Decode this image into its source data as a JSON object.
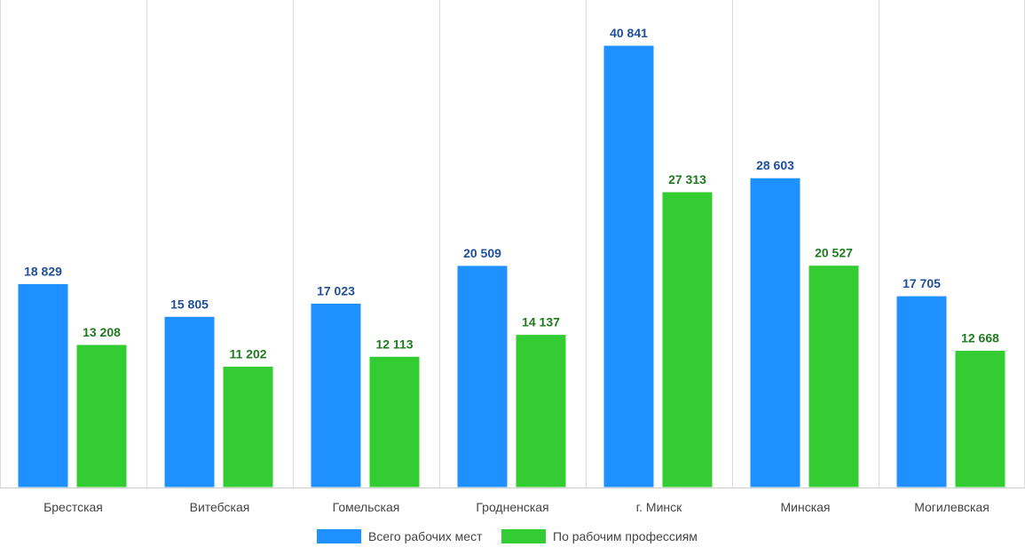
{
  "chart_data": {
    "type": "bar",
    "categories": [
      "Брестская",
      "Витебская",
      "Гомельская",
      "Гродненская",
      "г. Минск",
      "Минская",
      "Могилевская"
    ],
    "series": [
      {
        "name": "Всего рабочих мест",
        "values": [
          18829,
          15805,
          17023,
          20509,
          40841,
          28603,
          17705
        ],
        "labels": [
          "18 829",
          "15 805",
          "17 023",
          "20 509",
          "40 841",
          "28 603",
          "17 705"
        ],
        "color": "#1E90FF",
        "label_color": "#1F4E9A"
      },
      {
        "name": "По рабочим профессиям",
        "values": [
          13208,
          11202,
          12113,
          14137,
          27313,
          20527,
          12668
        ],
        "labels": [
          "13 208",
          "11 202",
          "12 113",
          "14 137",
          "27 313",
          "20 527",
          "12 668"
        ],
        "color": "#33CC33",
        "label_color": "#1E7A1E"
      }
    ],
    "ylim": [
      0,
      44000
    ],
    "grid": "vertical category separators",
    "legend_position": "bottom-center"
  }
}
